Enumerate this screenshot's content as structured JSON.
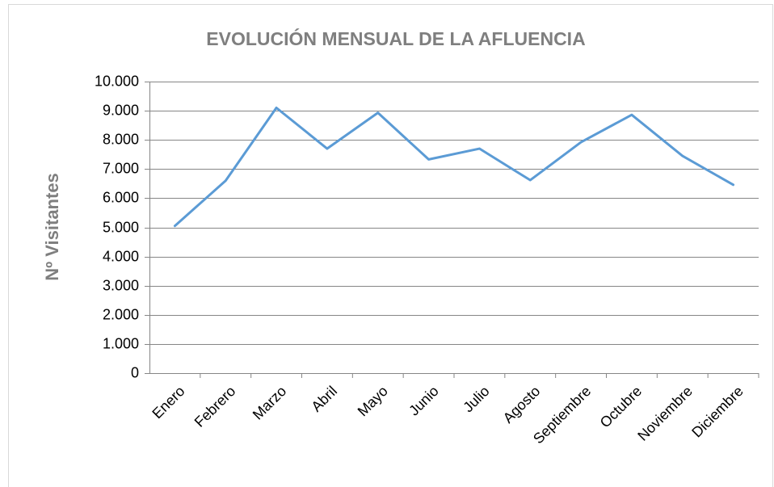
{
  "chart_data": {
    "type": "line",
    "title": "EVOLUCIÓN MENSUAL DE LA AFLUENCIA",
    "y_label": "Nº Visitantes",
    "categories": [
      "Enero",
      "Febrero",
      "Marzo",
      "Abril",
      "Mayo",
      "Junio",
      "Julio",
      "Agosto",
      "Septiembre",
      "Octubre",
      "Noviembre",
      "Diciembre"
    ],
    "values": [
      5050,
      6600,
      9100,
      7700,
      8930,
      7330,
      7700,
      6620,
      7920,
      8860,
      7450,
      6460
    ],
    "color": "#5b9bd5",
    "ylim": [
      0,
      10000
    ],
    "yticks": [
      0,
      {
        "value": 1000,
        "label": "1.000"
      },
      {
        "value": 2000,
        "label": "2.000"
      },
      {
        "value": 3000,
        "label": "3.000"
      },
      {
        "value": 4000,
        "label": "4.000"
      },
      {
        "value": 5000,
        "label": "5.000"
      },
      {
        "value": 6000,
        "label": "6.000"
      },
      {
        "value": 7000,
        "label": "7.000"
      },
      {
        "value": 8000,
        "label": "8.000"
      },
      {
        "value": 9000,
        "label": "9.000"
      },
      {
        "value": 10000,
        "label": "10.000"
      }
    ],
    "grid": true
  }
}
